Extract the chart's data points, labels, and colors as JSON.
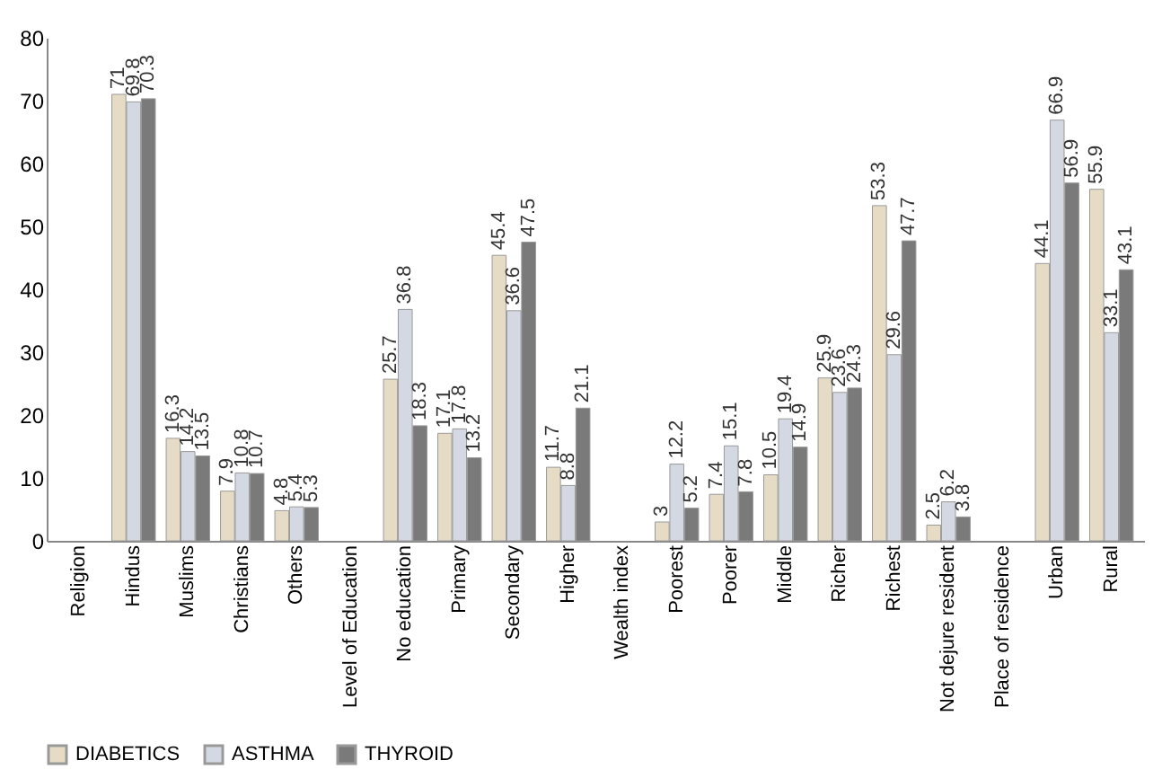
{
  "chart_data": {
    "type": "bar",
    "categories": [
      "Religion",
      "Hindus",
      "Muslims",
      "Christians",
      "Others",
      "Level of Education",
      "No education",
      "Primary",
      "Secondary",
      "Higher",
      "Wealth index",
      "Poorest",
      "Poorer",
      "Middle",
      "Richer",
      "Richest",
      "Not dejure resident",
      "Place of residence",
      "Urban",
      "Rural"
    ],
    "series": [
      {
        "name": "DIABETICS",
        "color": "#e6dcc6",
        "values": [
          null,
          71,
          16.3,
          7.9,
          4.8,
          null,
          25.7,
          17.1,
          45.4,
          11.7,
          null,
          3,
          7.4,
          10.5,
          25.9,
          53.3,
          2.5,
          null,
          44.1,
          55.9
        ]
      },
      {
        "name": "ASTHMA",
        "color": "#d3d8e2",
        "values": [
          null,
          69.8,
          14.2,
          10.8,
          5.4,
          null,
          36.8,
          17.8,
          36.6,
          8.8,
          null,
          12.2,
          15.1,
          19.4,
          23.6,
          29.6,
          6.2,
          null,
          66.9,
          33.1
        ]
      },
      {
        "name": "THYROID",
        "color": "#7a7a7a",
        "values": [
          null,
          70.3,
          13.5,
          10.7,
          5.3,
          null,
          18.3,
          13.2,
          47.5,
          21.1,
          null,
          5.2,
          7.8,
          14.9,
          24.3,
          47.7,
          3.8,
          null,
          56.9,
          43.1
        ]
      }
    ],
    "ylim": [
      0,
      80
    ],
    "yticks": [
      0,
      10,
      20,
      30,
      40,
      50,
      60,
      70,
      80
    ],
    "data_labels": true,
    "grid": false,
    "legend": "bottom"
  }
}
